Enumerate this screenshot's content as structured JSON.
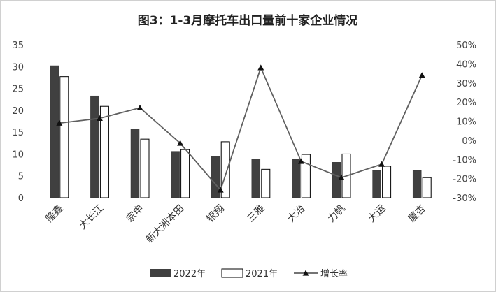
{
  "chart_data": {
    "type": "bar",
    "title": "图3：1-3月摩托车出口量前十家企业情况",
    "categories": [
      "隆鑫",
      "大长江",
      "宗申",
      "新大洲本田",
      "银翔",
      "三雅",
      "大冶",
      "力帆",
      "大运",
      "厦杏"
    ],
    "series": [
      {
        "name": "2022年",
        "type": "bar",
        "axis": "left",
        "color": "#404040",
        "values": [
          30.2,
          23.3,
          15.7,
          10.6,
          9.5,
          8.9,
          8.8,
          8.1,
          6.2,
          6.2
        ]
      },
      {
        "name": "2021年",
        "type": "bar",
        "axis": "left",
        "color": "#ffffff",
        "values": [
          27.7,
          20.9,
          13.4,
          11.0,
          12.8,
          6.5,
          9.9,
          10.0,
          7.2,
          4.6
        ]
      },
      {
        "name": "增长率",
        "type": "line",
        "axis": "right",
        "color": "#606060",
        "values": [
          9.0,
          11.5,
          17.0,
          -1.5,
          -26.0,
          38.0,
          -11.0,
          -19.5,
          -12.5,
          34.0
        ]
      }
    ],
    "y_left": {
      "min": 0,
      "max": 35,
      "step": 5,
      "ticks": [
        "0",
        "5",
        "10",
        "15",
        "20",
        "25",
        "30",
        "35"
      ]
    },
    "y_right": {
      "min": -30,
      "max": 50,
      "step": 10,
      "ticks": [
        "-30%",
        "-20%",
        "-10%",
        "0%",
        "10%",
        "20%",
        "30%",
        "40%",
        "50%"
      ]
    },
    "grid": false,
    "legend_position": "bottom"
  }
}
